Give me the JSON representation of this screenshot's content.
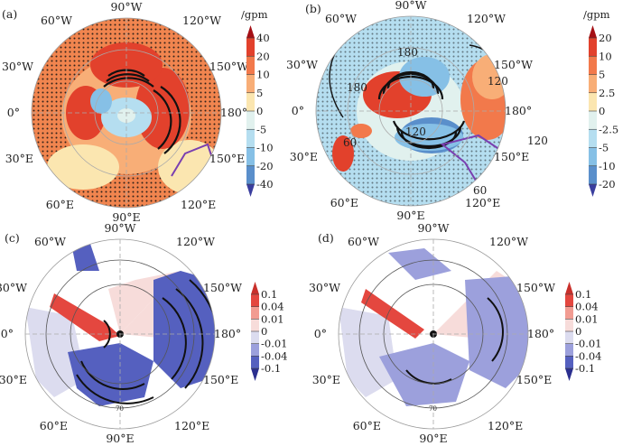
{
  "panels": [
    {
      "id": "a",
      "tag": "(a)",
      "unit": "/gpm",
      "lon_labels": {
        "n90w": "90°W",
        "n60w": "60°W",
        "n120w": "120°W",
        "n30w": "30°W",
        "n150w": "150°W",
        "n0": "0°",
        "n180": "180°",
        "n30e": "30°E",
        "n150e": "150°E",
        "n60e": "60°E",
        "n120e": "120°E",
        "n90e": "90°E"
      },
      "colorbar": {
        "ticks": [
          "40",
          "20",
          "10",
          "5",
          "0",
          "-5",
          "-10",
          "-20",
          "-40"
        ],
        "colors": [
          "#a50f15",
          "#e2412c",
          "#f2794b",
          "#f8ae77",
          "#fbe6b0",
          "#e1f1ee",
          "#b5def0",
          "#86c0e6",
          "#5a8fcb",
          "#3a3e9e"
        ]
      }
    },
    {
      "id": "b",
      "tag": "(b)",
      "unit": "/gpm",
      "contour_labels": [
        "180",
        "180",
        "120",
        "120",
        "60",
        "60",
        "120"
      ],
      "lon_labels": {
        "n90w": "90°W",
        "n60w": "60°W",
        "n120w": "120°W",
        "n30w": "30°W",
        "n150w": "150°W",
        "n0": "0°",
        "n180": "180°",
        "n30e": "30°E",
        "n150e": "150°E",
        "n60e": "60°E",
        "n120e": "120°E",
        "n90e": "90°E"
      },
      "colorbar": {
        "ticks": [
          "20",
          "10",
          "5",
          "2.5",
          "0",
          "-2.5",
          "-5",
          "-10",
          "-20"
        ],
        "colors": [
          "#a50f15",
          "#e2412c",
          "#f2794b",
          "#f8ae77",
          "#fbe6b0",
          "#e1f1ee",
          "#b5def0",
          "#86c0e6",
          "#5a8fcb",
          "#3a3e9e"
        ]
      }
    },
    {
      "id": "c",
      "tag": "(c)",
      "contour_labels": [
        "70"
      ],
      "lon_labels": {
        "n90w": "90°W",
        "n60w": "60°W",
        "n120w": "120°W",
        "n30w": "30°W",
        "n150w": "150°W",
        "n0": "0°",
        "n180": "180°",
        "n30e": "30°E",
        "n150e": "150°E",
        "n60e": "60°E",
        "n120e": "120°E",
        "n90e": "90°E"
      },
      "colorbar": {
        "ticks": [
          "0.1",
          "0.04",
          "0.01",
          "0",
          "-0.01",
          "-0.04",
          "-0.1"
        ],
        "colors": [
          "#c9302b",
          "#e4473f",
          "#f29c92",
          "#f7dcda",
          "#dcdcef",
          "#9ca0dc",
          "#5560bf",
          "#2b2f8f"
        ]
      }
    },
    {
      "id": "d",
      "tag": "(d)",
      "contour_labels": [
        "70"
      ],
      "lon_labels": {
        "n90w": "90°W",
        "n60w": "60°W",
        "n120w": "120°W",
        "n30w": "30°W",
        "n150w": "150°W",
        "n0": "0°",
        "n180": "180°",
        "n30e": "30°E",
        "n150e": "150°E",
        "n60e": "60°E",
        "n120e": "120°E",
        "n90e": "90°E"
      },
      "colorbar": {
        "ticks": [
          "0.1",
          "0.04",
          "0.01",
          "0",
          "-0.01",
          "-0.04",
          "-0.1"
        ],
        "colors": [
          "#c9302b",
          "#e4473f",
          "#f29c92",
          "#f7dcda",
          "#dcdcef",
          "#9ca0dc",
          "#5560bf",
          "#2b2f8f"
        ]
      }
    }
  ]
}
